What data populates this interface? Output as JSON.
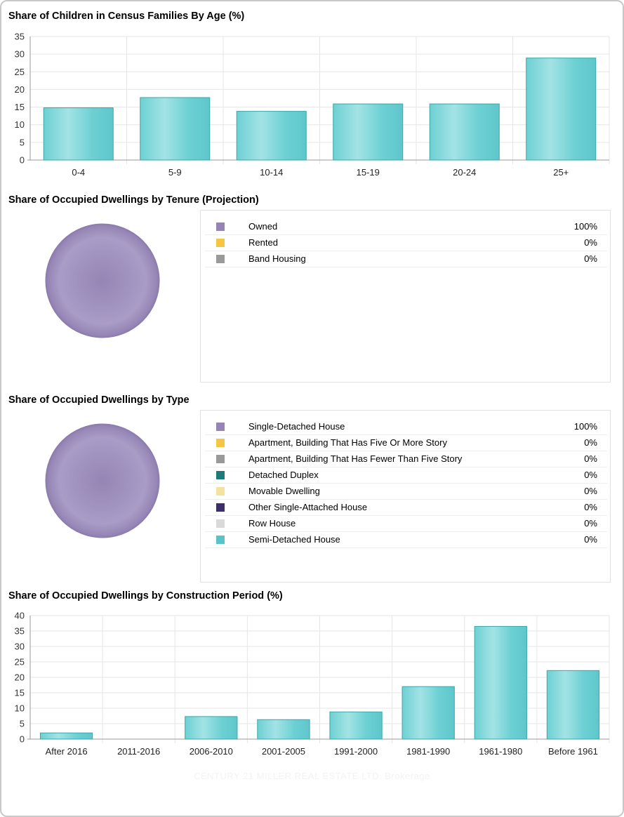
{
  "chart_data": [
    {
      "type": "bar",
      "title": "Share of Children in Census Families By Age (%)",
      "categories": [
        "0-4",
        "5-9",
        "10-14",
        "15-19",
        "20-24",
        "25+"
      ],
      "values": [
        14.8,
        17.7,
        13.8,
        15.9,
        15.9,
        28.9
      ],
      "ylim": [
        0,
        35
      ],
      "yticks": [
        0,
        5,
        10,
        15,
        20,
        25,
        30,
        35
      ],
      "grid": true,
      "bar_color": "#6dd0d3"
    },
    {
      "type": "pie",
      "title": "Share of Occupied Dwellings by Tenure (Projection)",
      "slices": [
        {
          "label": "Owned",
          "value": 100,
          "display": "100%",
          "color": "#9585b5"
        },
        {
          "label": "Rented",
          "value": 0,
          "display": "0%",
          "color": "#f3c744"
        },
        {
          "label": "Band Housing",
          "value": 0,
          "display": "0%",
          "color": "#9a9a9a"
        }
      ]
    },
    {
      "type": "pie",
      "title": "Share of Occupied Dwellings by Type",
      "slices": [
        {
          "label": "Single-Detached House",
          "value": 100,
          "display": "100%",
          "color": "#9585b5"
        },
        {
          "label": "Apartment, Building That Has Five Or More Story",
          "value": 0,
          "display": "0%",
          "color": "#f3c744"
        },
        {
          "label": "Apartment, Building That Has Fewer Than Five Story",
          "value": 0,
          "display": "0%",
          "color": "#9a9a9a"
        },
        {
          "label": "Detached Duplex",
          "value": 0,
          "display": "0%",
          "color": "#1f7a7a"
        },
        {
          "label": "Movable Dwelling",
          "value": 0,
          "display": "0%",
          "color": "#f5e2a0"
        },
        {
          "label": "Other Single-Attached House",
          "value": 0,
          "display": "0%",
          "color": "#3d3068"
        },
        {
          "label": "Row House",
          "value": 0,
          "display": "0%",
          "color": "#d9d9d9"
        },
        {
          "label": "Semi-Detached House",
          "value": 0,
          "display": "0%",
          "color": "#58c4c8"
        }
      ]
    },
    {
      "type": "bar",
      "title": "Share of Occupied Dwellings by Construction Period (%)",
      "categories": [
        "After 2016",
        "2011-2016",
        "2006-2010",
        "2001-2005",
        "1991-2000",
        "1981-1990",
        "1961-1980",
        "Before 1961"
      ],
      "values": [
        2.0,
        0,
        7.3,
        6.3,
        8.8,
        17.0,
        36.5,
        22.2
      ],
      "ylim": [
        0,
        40
      ],
      "yticks": [
        0,
        5,
        10,
        15,
        20,
        25,
        30,
        35,
        40
      ],
      "grid": true,
      "bar_color": "#6dd0d3"
    }
  ],
  "watermark": "CENTURY 21 MILLER REAL ESTATE LTD. Brokerage"
}
